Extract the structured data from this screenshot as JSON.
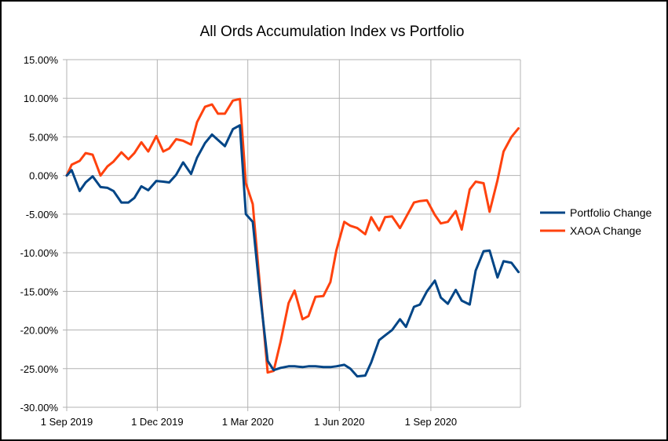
{
  "chart_data": {
    "type": "line",
    "title": "All Ords Accumulation Index vs Portfolio",
    "xlabel": "",
    "ylabel": "",
    "x_start": "2019-09-01",
    "x_end": "2020-11-30",
    "ylim": [
      -30,
      15
    ],
    "y_ticks": [
      15,
      10,
      5,
      0,
      -5,
      -10,
      -15,
      -20,
      -25,
      -30
    ],
    "y_tick_labels": [
      "15.00%",
      "10.00%",
      "5.00%",
      "0.00%",
      "-5.00%",
      "-10.00%",
      "-15.00%",
      "-20.00%",
      "-25.00%",
      "-30.00%"
    ],
    "x_ticks": [
      "2019-09-01",
      "2019-12-01",
      "2020-03-01",
      "2020-06-01",
      "2020-09-01"
    ],
    "x_tick_labels": [
      "1 Sep 2019",
      "1 Dec 2019",
      "1 Mar 2020",
      "1 Jun 2020",
      "1 Sep 2020"
    ],
    "grid": true,
    "legend_position": "right",
    "series": [
      {
        "name": "Portfolio Change",
        "color": "#004586",
        "x": [
          "2019-09-01",
          "2019-09-06",
          "2019-09-14",
          "2019-09-20",
          "2019-09-27",
          "2019-10-05",
          "2019-10-12",
          "2019-10-18",
          "2019-10-26",
          "2019-11-02",
          "2019-11-08",
          "2019-11-15",
          "2019-11-22",
          "2019-11-30",
          "2019-12-07",
          "2019-12-13",
          "2019-12-20",
          "2019-12-27",
          "2020-01-04",
          "2020-01-10",
          "2020-01-18",
          "2020-01-25",
          "2020-01-31",
          "2020-02-07",
          "2020-02-15",
          "2020-02-22",
          "2020-02-28",
          "2020-03-06",
          "2020-03-13",
          "2020-03-21",
          "2020-03-27",
          "2020-04-03",
          "2020-04-11",
          "2020-04-17",
          "2020-04-25",
          "2020-05-01",
          "2020-05-08",
          "2020-05-16",
          "2020-05-23",
          "2020-05-29",
          "2020-06-06",
          "2020-06-12",
          "2020-06-19",
          "2020-06-27",
          "2020-07-03",
          "2020-07-11",
          "2020-07-17",
          "2020-07-24",
          "2020-08-01",
          "2020-08-07",
          "2020-08-15",
          "2020-08-21",
          "2020-08-28",
          "2020-09-05",
          "2020-09-11",
          "2020-09-18",
          "2020-09-26",
          "2020-10-02",
          "2020-10-10",
          "2020-10-16",
          "2020-10-24",
          "2020-10-30",
          "2020-11-07",
          "2020-11-13",
          "2020-11-21",
          "2020-11-28"
        ],
        "values": [
          0.0,
          0.7,
          -2.0,
          -0.9,
          -0.1,
          -1.5,
          -1.6,
          -2.0,
          -3.5,
          -3.5,
          -2.9,
          -1.4,
          -1.9,
          -0.7,
          -0.8,
          -0.9,
          0.1,
          1.7,
          0.2,
          2.3,
          4.2,
          5.3,
          4.6,
          3.8,
          6.0,
          6.5,
          -5.0,
          -6.0,
          -15.0,
          -24.0,
          -25.2,
          -24.9,
          -24.7,
          -24.7,
          -24.8,
          -24.7,
          -24.7,
          -24.8,
          -24.8,
          -24.7,
          -24.5,
          -25.0,
          -26.0,
          -25.9,
          -24.2,
          -21.3,
          -20.7,
          -20.0,
          -18.6,
          -19.6,
          -17.0,
          -16.7,
          -15.0,
          -13.6,
          -15.8,
          -16.6,
          -14.8,
          -16.2,
          -16.7,
          -12.3,
          -9.8,
          -9.7,
          -13.2,
          -11.1,
          -11.3,
          -12.5
        ]
      },
      {
        "name": "XAOA Change",
        "color": "#ff420e",
        "x": [
          "2019-09-01",
          "2019-09-06",
          "2019-09-14",
          "2019-09-20",
          "2019-09-27",
          "2019-10-05",
          "2019-10-12",
          "2019-10-18",
          "2019-10-26",
          "2019-11-02",
          "2019-11-08",
          "2019-11-15",
          "2019-11-22",
          "2019-11-30",
          "2019-12-07",
          "2019-12-13",
          "2019-12-20",
          "2019-12-27",
          "2020-01-04",
          "2020-01-10",
          "2020-01-18",
          "2020-01-25",
          "2020-01-31",
          "2020-02-07",
          "2020-02-15",
          "2020-02-22",
          "2020-02-28",
          "2020-03-06",
          "2020-03-13",
          "2020-03-21",
          "2020-03-27",
          "2020-04-03",
          "2020-04-11",
          "2020-04-17",
          "2020-04-25",
          "2020-05-01",
          "2020-05-08",
          "2020-05-16",
          "2020-05-23",
          "2020-05-29",
          "2020-06-06",
          "2020-06-12",
          "2020-06-19",
          "2020-06-27",
          "2020-07-03",
          "2020-07-11",
          "2020-07-17",
          "2020-07-24",
          "2020-08-01",
          "2020-08-07",
          "2020-08-15",
          "2020-08-21",
          "2020-08-28",
          "2020-09-05",
          "2020-09-11",
          "2020-09-18",
          "2020-09-26",
          "2020-10-02",
          "2020-10-10",
          "2020-10-16",
          "2020-10-24",
          "2020-10-30",
          "2020-11-07",
          "2020-11-13",
          "2020-11-21",
          "2020-11-28"
        ],
        "values": [
          0.0,
          1.4,
          1.9,
          2.9,
          2.7,
          0.0,
          1.2,
          1.8,
          3.0,
          2.1,
          2.9,
          4.3,
          3.1,
          5.1,
          3.1,
          3.5,
          4.7,
          4.5,
          4.0,
          6.9,
          8.9,
          9.2,
          8.0,
          8.0,
          9.7,
          9.9,
          -1.0,
          -3.7,
          -14.0,
          -25.5,
          -25.3,
          -21.5,
          -16.5,
          -14.9,
          -18.6,
          -18.2,
          -15.7,
          -15.6,
          -13.8,
          -9.7,
          -6.0,
          -6.5,
          -6.8,
          -7.6,
          -5.4,
          -7.1,
          -5.4,
          -5.3,
          -6.8,
          -5.4,
          -3.5,
          -3.3,
          -3.2,
          -5.1,
          -6.2,
          -6.0,
          -4.6,
          -7.0,
          -1.8,
          -0.8,
          -1.0,
          -4.7,
          -0.6,
          3.1,
          5.0,
          6.1
        ]
      }
    ]
  }
}
